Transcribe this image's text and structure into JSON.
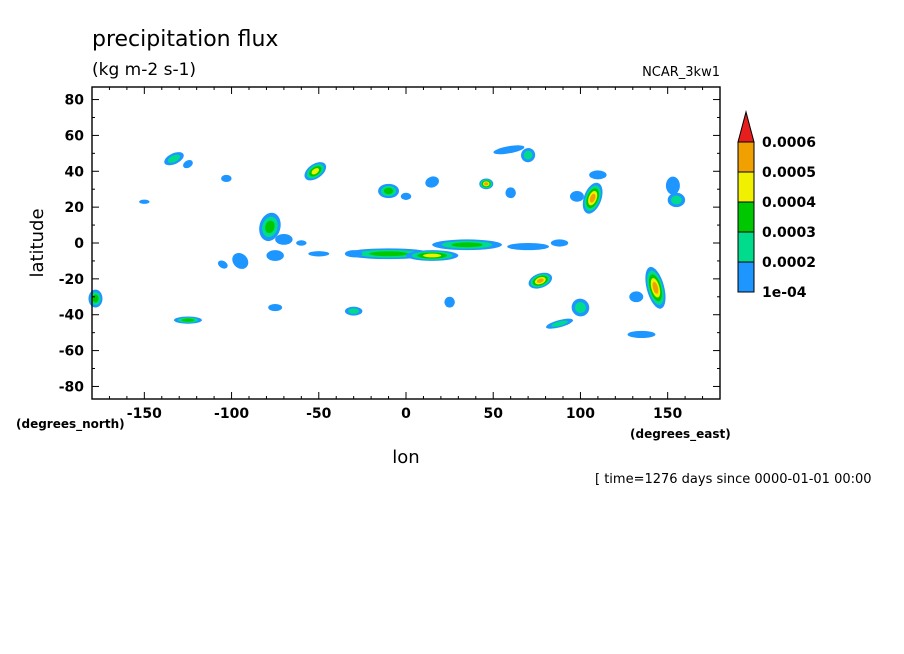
{
  "chart_data": {
    "type": "contour-map",
    "title": "precipitation flux",
    "units": "(kg m-2 s-1)",
    "dataset": "NCAR_3kw1",
    "xlabel": "lon",
    "ylabel": "latitude",
    "xunits": "(degrees_east)",
    "yunits": "(degrees_north)",
    "xlim": [
      -180,
      180
    ],
    "ylim": [
      -87,
      87
    ],
    "xticks": [
      -150,
      -100,
      -50,
      0,
      50,
      100,
      150
    ],
    "yticks": [
      80,
      60,
      40,
      20,
      0,
      -20,
      -40,
      -60,
      -80
    ],
    "xtick_labels": [
      "-150",
      "-100",
      "-50",
      "0",
      "50",
      "100",
      "150"
    ],
    "ytick_labels": [
      "80",
      "60",
      "40",
      "20",
      "0",
      "-20",
      "-40",
      "-60",
      "-80"
    ],
    "time_note": "[ time=1276 days since 0000-01-01 00:00",
    "colorbar": {
      "levels": [
        0.0001,
        0.0002,
        0.0003,
        0.0004,
        0.0005,
        0.0006
      ],
      "labels": [
        "1e-04",
        "0.0002",
        "0.0003",
        "0.0004",
        "0.0005",
        "0.0006"
      ],
      "colors": [
        "#1e96ff",
        "#00dc8c",
        "#00c800",
        "#f0f000",
        "#f0a000",
        "#e61e1e"
      ],
      "extend": "max"
    },
    "blobs": [
      {
        "lon": -133,
        "lat": 47,
        "rlon": 6,
        "rlat": 3,
        "rot": -25,
        "peak": 2
      },
      {
        "lon": -125,
        "lat": 44,
        "rlon": 3,
        "rlat": 2,
        "rot": -30,
        "peak": 1
      },
      {
        "lon": -150,
        "lat": 23,
        "rlon": 3,
        "rlat": 1.2,
        "rot": 0,
        "peak": 1
      },
      {
        "lon": -103,
        "lat": 36,
        "rlon": 3,
        "rlat": 2,
        "rot": 0,
        "peak": 1
      },
      {
        "lon": -52,
        "lat": 40,
        "rlon": 7,
        "rlat": 4,
        "rot": -35,
        "peak": 4
      },
      {
        "lon": -10,
        "lat": 29,
        "rlon": 6,
        "rlat": 4,
        "rot": 0,
        "peak": 3
      },
      {
        "lon": 0,
        "lat": 26,
        "rlon": 3,
        "rlat": 2,
        "rot": 0,
        "peak": 1
      },
      {
        "lon": 15,
        "lat": 34,
        "rlon": 4,
        "rlat": 3,
        "rot": -20,
        "peak": 1
      },
      {
        "lon": 46,
        "lat": 33,
        "rlon": 4,
        "rlat": 3,
        "rot": 0,
        "peak": 5
      },
      {
        "lon": 59,
        "lat": 52,
        "rlon": 9,
        "rlat": 2,
        "rot": -10,
        "peak": 1
      },
      {
        "lon": 70,
        "lat": 49,
        "rlon": 4,
        "rlat": 4,
        "rot": 40,
        "peak": 2
      },
      {
        "lon": 60,
        "lat": 28,
        "rlon": 3,
        "rlat": 3,
        "rot": 0,
        "peak": 1
      },
      {
        "lon": 110,
        "lat": 38,
        "rlon": 5,
        "rlat": 2.5,
        "rot": 0,
        "peak": 1
      },
      {
        "lon": 107,
        "lat": 25,
        "rlon": 5,
        "rlat": 9,
        "rot": 20,
        "peak": 5
      },
      {
        "lon": 98,
        "lat": 26,
        "rlon": 4,
        "rlat": 3,
        "rot": 0,
        "peak": 1
      },
      {
        "lon": 153,
        "lat": 32,
        "rlon": 4,
        "rlat": 5,
        "rot": 0,
        "peak": 1
      },
      {
        "lon": 155,
        "lat": 24,
        "rlon": 5,
        "rlat": 4,
        "rot": 0,
        "peak": 2
      },
      {
        "lon": -78,
        "lat": 9,
        "rlon": 6,
        "rlat": 8,
        "rot": 15,
        "peak": 3
      },
      {
        "lon": -70,
        "lat": 2,
        "rlon": 5,
        "rlat": 3,
        "rot": 0,
        "peak": 1
      },
      {
        "lon": -95,
        "lat": -10,
        "rlon": 5,
        "rlat": 4,
        "rot": 45,
        "peak": 1
      },
      {
        "lon": -75,
        "lat": -7,
        "rlon": 5,
        "rlat": 3,
        "rot": 0,
        "peak": 1
      },
      {
        "lon": -10,
        "lat": -6,
        "rlon": 25,
        "rlat": 3,
        "rot": 0,
        "peak": 3
      },
      {
        "lon": 15,
        "lat": -7,
        "rlon": 15,
        "rlat": 3,
        "rot": 0,
        "peak": 4
      },
      {
        "lon": 35,
        "lat": -1,
        "rlon": 20,
        "rlat": 3,
        "rot": 0,
        "peak": 3
      },
      {
        "lon": 70,
        "lat": -2,
        "rlon": 12,
        "rlat": 2,
        "rot": 0,
        "peak": 1
      },
      {
        "lon": 88,
        "lat": 0,
        "rlon": 5,
        "rlat": 2,
        "rot": 0,
        "peak": 1
      },
      {
        "lon": -60,
        "lat": 0,
        "rlon": 3,
        "rlat": 1.5,
        "rot": 0,
        "peak": 1
      },
      {
        "lon": 77,
        "lat": -21,
        "rlon": 7,
        "rlat": 4,
        "rot": -20,
        "peak": 5
      },
      {
        "lon": 143,
        "lat": -25,
        "rlon": 5,
        "rlat": 12,
        "rot": -15,
        "peak": 5
      },
      {
        "lon": 132,
        "lat": -30,
        "rlon": 4,
        "rlat": 3,
        "rot": 0,
        "peak": 1
      },
      {
        "lon": -178,
        "lat": -31,
        "rlon": 4,
        "rlat": 5,
        "rot": 0,
        "peak": 3
      },
      {
        "lon": -125,
        "lat": -43,
        "rlon": 8,
        "rlat": 2,
        "rot": 0,
        "peak": 3
      },
      {
        "lon": -75,
        "lat": -36,
        "rlon": 4,
        "rlat": 2,
        "rot": 0,
        "peak": 1
      },
      {
        "lon": -30,
        "lat": -38,
        "rlon": 5,
        "rlat": 2.5,
        "rot": 0,
        "peak": 2
      },
      {
        "lon": 25,
        "lat": -33,
        "rlon": 3,
        "rlat": 3,
        "rot": 0,
        "peak": 1
      },
      {
        "lon": 88,
        "lat": -45,
        "rlon": 8,
        "rlat": 2,
        "rot": -15,
        "peak": 2
      },
      {
        "lon": 100,
        "lat": -36,
        "rlon": 5,
        "rlat": 5,
        "rot": -40,
        "peak": 2
      },
      {
        "lon": 135,
        "lat": -51,
        "rlon": 8,
        "rlat": 2,
        "rot": 0,
        "peak": 1
      },
      {
        "lon": -105,
        "lat": -12,
        "rlon": 3,
        "rlat": 2,
        "rot": 30,
        "peak": 1
      },
      {
        "lon": -50,
        "lat": -6,
        "rlon": 6,
        "rlat": 1.5,
        "rot": 0,
        "peak": 1
      },
      {
        "lon": -30,
        "lat": -6,
        "rlon": 5,
        "rlat": 2,
        "rot": 0,
        "peak": 1
      }
    ]
  }
}
